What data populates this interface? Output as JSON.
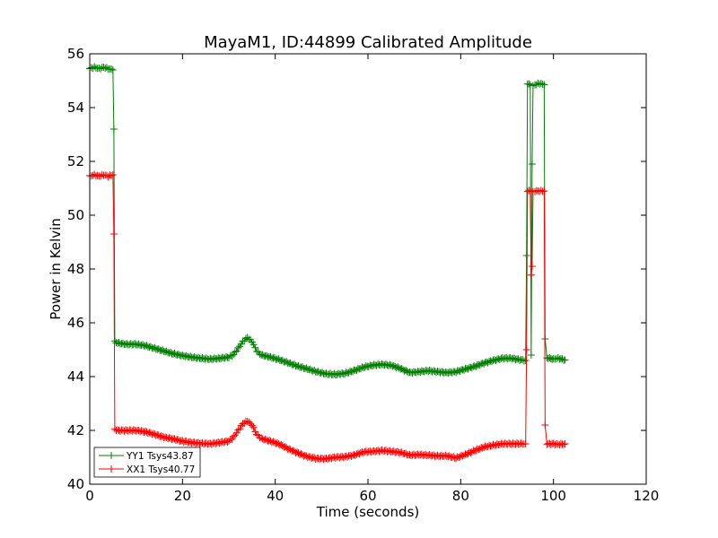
{
  "chart_data": {
    "type": "line",
    "title": "MayaM1, ID:44899 Calibrated Amplitude",
    "xlabel": "Time (seconds)",
    "ylabel": "Power in Kelvin",
    "xlim": [
      0,
      120
    ],
    "ylim": [
      40,
      56
    ],
    "xticks": [
      "0",
      "20",
      "40",
      "60",
      "80",
      "100",
      "120"
    ],
    "yticks": [
      "40",
      "42",
      "44",
      "46",
      "48",
      "50",
      "52",
      "54",
      "56"
    ],
    "grid": false,
    "legend_position": "lower-left",
    "series": [
      {
        "name": "YY1 Tsys43.87",
        "color": "#007f00",
        "marker": "+",
        "points": [
          [
            0.0,
            55.45
          ],
          [
            1.0,
            55.5
          ],
          [
            2.0,
            55.45
          ],
          [
            3.0,
            55.5
          ],
          [
            4.0,
            55.45
          ],
          [
            5.0,
            55.4
          ],
          [
            5.2,
            53.2
          ],
          [
            5.4,
            45.3
          ],
          [
            6.0,
            45.25
          ],
          [
            8.0,
            45.2
          ],
          [
            10.0,
            45.2
          ],
          [
            12.0,
            45.15
          ],
          [
            14.0,
            45.05
          ],
          [
            16.0,
            44.95
          ],
          [
            18.0,
            44.85
          ],
          [
            20.0,
            44.78
          ],
          [
            22.0,
            44.72
          ],
          [
            24.0,
            44.68
          ],
          [
            26.0,
            44.65
          ],
          [
            28.0,
            44.68
          ],
          [
            30.0,
            44.72
          ],
          [
            31.0,
            44.82
          ],
          [
            32.0,
            45.05
          ],
          [
            33.0,
            45.3
          ],
          [
            34.0,
            45.45
          ],
          [
            35.0,
            45.3
          ],
          [
            36.0,
            44.95
          ],
          [
            37.0,
            44.8
          ],
          [
            39.0,
            44.72
          ],
          [
            41.0,
            44.62
          ],
          [
            43.0,
            44.5
          ],
          [
            45.0,
            44.38
          ],
          [
            47.0,
            44.28
          ],
          [
            49.0,
            44.18
          ],
          [
            51.0,
            44.1
          ],
          [
            53.0,
            44.08
          ],
          [
            55.0,
            44.12
          ],
          [
            57.0,
            44.22
          ],
          [
            59.0,
            44.35
          ],
          [
            61.0,
            44.42
          ],
          [
            63.0,
            44.45
          ],
          [
            65.0,
            44.42
          ],
          [
            67.0,
            44.3
          ],
          [
            69.0,
            44.15
          ],
          [
            71.0,
            44.18
          ],
          [
            73.0,
            44.22
          ],
          [
            75.0,
            44.18
          ],
          [
            77.0,
            44.15
          ],
          [
            79.0,
            44.18
          ],
          [
            81.0,
            44.28
          ],
          [
            83.0,
            44.38
          ],
          [
            85.0,
            44.5
          ],
          [
            87.0,
            44.6
          ],
          [
            89.0,
            44.68
          ],
          [
            91.0,
            44.68
          ],
          [
            93.0,
            44.62
          ],
          [
            94.0,
            44.6
          ],
          [
            94.2,
            48.5
          ],
          [
            94.4,
            54.9
          ],
          [
            95.0,
            54.85
          ],
          [
            95.2,
            44.8
          ],
          [
            95.4,
            51.9
          ],
          [
            95.6,
            54.8
          ],
          [
            96.0,
            54.85
          ],
          [
            97.0,
            54.9
          ],
          [
            98.0,
            54.85
          ],
          [
            98.2,
            45.4
          ],
          [
            98.6,
            44.7
          ],
          [
            100.0,
            44.65
          ],
          [
            101.0,
            44.68
          ],
          [
            102.5,
            44.62
          ]
        ]
      },
      {
        "name": "XX1 Tsys40.77",
        "color": "#ff0000",
        "marker": "+",
        "points": [
          [
            0.0,
            51.45
          ],
          [
            1.0,
            51.5
          ],
          [
            2.0,
            51.45
          ],
          [
            3.0,
            51.5
          ],
          [
            4.0,
            51.45
          ],
          [
            5.0,
            51.5
          ],
          [
            5.2,
            49.3
          ],
          [
            5.4,
            42.05
          ],
          [
            6.0,
            42.0
          ],
          [
            8.0,
            42.0
          ],
          [
            10.0,
            42.0
          ],
          [
            12.0,
            41.95
          ],
          [
            14.0,
            41.85
          ],
          [
            16.0,
            41.75
          ],
          [
            18.0,
            41.68
          ],
          [
            20.0,
            41.6
          ],
          [
            22.0,
            41.55
          ],
          [
            24.0,
            41.52
          ],
          [
            26.0,
            41.5
          ],
          [
            28.0,
            41.55
          ],
          [
            30.0,
            41.6
          ],
          [
            31.0,
            41.75
          ],
          [
            32.0,
            42.0
          ],
          [
            33.0,
            42.25
          ],
          [
            34.0,
            42.35
          ],
          [
            35.0,
            42.2
          ],
          [
            36.0,
            41.85
          ],
          [
            37.0,
            41.7
          ],
          [
            39.0,
            41.6
          ],
          [
            41.0,
            41.48
          ],
          [
            43.0,
            41.3
          ],
          [
            45.0,
            41.15
          ],
          [
            47.0,
            41.02
          ],
          [
            49.0,
            40.95
          ],
          [
            51.0,
            40.95
          ],
          [
            53.0,
            41.0
          ],
          [
            55.0,
            41.02
          ],
          [
            57.0,
            41.08
          ],
          [
            59.0,
            41.2
          ],
          [
            61.0,
            41.22
          ],
          [
            63.0,
            41.25
          ],
          [
            65.0,
            41.22
          ],
          [
            67.0,
            41.18
          ],
          [
            69.0,
            41.08
          ],
          [
            71.0,
            41.1
          ],
          [
            73.0,
            41.08
          ],
          [
            75.0,
            41.05
          ],
          [
            77.0,
            41.05
          ],
          [
            79.0,
            40.98
          ],
          [
            81.0,
            41.1
          ],
          [
            83.0,
            41.25
          ],
          [
            85.0,
            41.38
          ],
          [
            87.0,
            41.45
          ],
          [
            89.0,
            41.5
          ],
          [
            91.0,
            41.5
          ],
          [
            93.0,
            41.5
          ],
          [
            94.0,
            41.5
          ],
          [
            94.2,
            45.0
          ],
          [
            94.4,
            50.9
          ],
          [
            95.0,
            50.9
          ],
          [
            95.2,
            47.8
          ],
          [
            95.4,
            48.1
          ],
          [
            95.6,
            50.85
          ],
          [
            96.0,
            50.9
          ],
          [
            97.0,
            50.9
          ],
          [
            98.0,
            50.9
          ],
          [
            98.2,
            42.2
          ],
          [
            98.6,
            41.5
          ],
          [
            100.0,
            41.5
          ],
          [
            101.0,
            41.48
          ],
          [
            102.5,
            41.5
          ]
        ]
      }
    ]
  }
}
